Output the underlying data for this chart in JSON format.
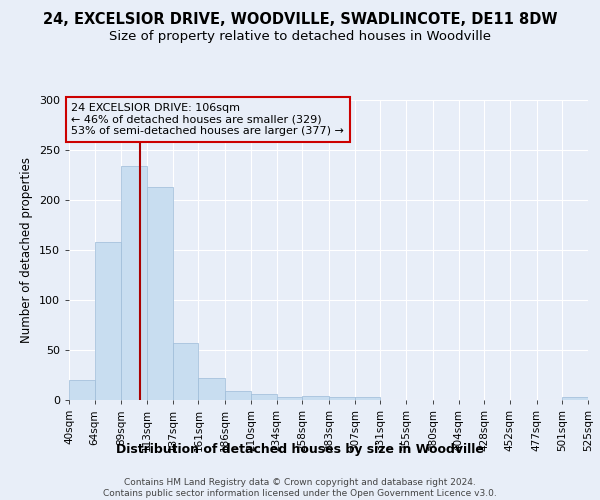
{
  "title": "24, EXCELSIOR DRIVE, WOODVILLE, SWADLINCOTE, DE11 8DW",
  "subtitle": "Size of property relative to detached houses in Woodville",
  "xlabel": "Distribution of detached houses by size in Woodville",
  "ylabel": "Number of detached properties",
  "footer_line1": "Contains HM Land Registry data © Crown copyright and database right 2024.",
  "footer_line2": "Contains public sector information licensed under the Open Government Licence v3.0.",
  "annotation_line1": "24 EXCELSIOR DRIVE: 106sqm",
  "annotation_line2": "← 46% of detached houses are smaller (329)",
  "annotation_line3": "53% of semi-detached houses are larger (377) →",
  "property_size_sqm": 106,
  "bar_color": "#c8ddf0",
  "bar_edge_color": "#9dbbd8",
  "vline_color": "#aa0000",
  "annotation_box_edge_color": "#cc0000",
  "background_color": "#e8eef8",
  "grid_color": "#ffffff",
  "bins": [
    40,
    64,
    89,
    113,
    137,
    161,
    186,
    210,
    234,
    258,
    283,
    307,
    331,
    355,
    380,
    404,
    428,
    452,
    477,
    501,
    525
  ],
  "bar_heights": [
    20,
    158,
    234,
    213,
    57,
    22,
    9,
    6,
    3,
    4,
    3,
    3,
    0,
    0,
    0,
    0,
    0,
    0,
    0,
    3
  ],
  "tick_labels": [
    "40sqm",
    "64sqm",
    "89sqm",
    "113sqm",
    "137sqm",
    "161sqm",
    "186sqm",
    "210sqm",
    "234sqm",
    "258sqm",
    "283sqm",
    "307sqm",
    "331sqm",
    "355sqm",
    "380sqm",
    "404sqm",
    "428sqm",
    "452sqm",
    "477sqm",
    "501sqm",
    "525sqm"
  ],
  "ylim": [
    0,
    300
  ],
  "yticks": [
    0,
    50,
    100,
    150,
    200,
    250,
    300
  ],
  "title_fontsize": 10.5,
  "subtitle_fontsize": 9.5,
  "ylabel_fontsize": 8.5,
  "xlabel_fontsize": 9,
  "tick_fontsize": 7.5,
  "annotation_fontsize": 8,
  "footer_fontsize": 6.5
}
